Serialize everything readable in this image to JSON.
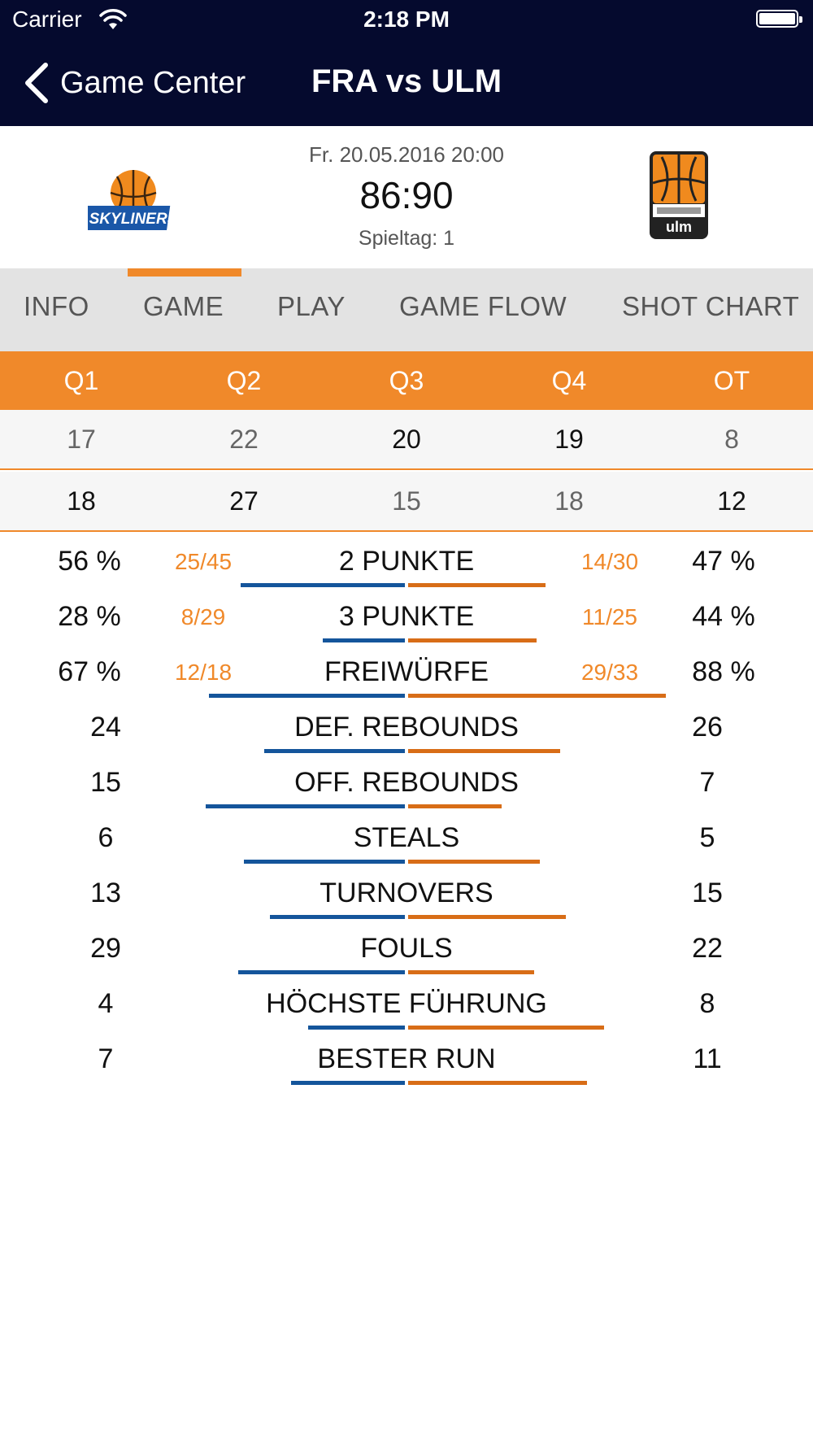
{
  "status_bar": {
    "carrier": "Carrier",
    "time": "2:18 PM"
  },
  "nav": {
    "back_label": "Game Center",
    "title": "FRA vs ULM"
  },
  "match": {
    "date": "Fr. 20.05.2016 20:00",
    "score": "86:90",
    "matchday": "Spieltag: 1",
    "home_logo_text": "SKYLINERS",
    "away_logo_text": "ulm"
  },
  "tabs": [
    {
      "label": "INFO"
    },
    {
      "label": "GAME",
      "active": true
    },
    {
      "label": "PLAY"
    },
    {
      "label": "GAME FLOW"
    },
    {
      "label": "SHOT CHART"
    }
  ],
  "quarters": {
    "headers": [
      "Q1",
      "Q2",
      "Q3",
      "Q4",
      "OT"
    ],
    "home": [
      "17",
      "22",
      "20",
      "19",
      "8"
    ],
    "away": [
      "18",
      "27",
      "15",
      "18",
      "12"
    ]
  },
  "stats": [
    {
      "label": "2 PUNKTE",
      "home_pct": "56 %",
      "home_frac": "25/45",
      "away_frac": "14/30",
      "away_pct": "47 %",
      "home_bar": 0.56,
      "away_bar": 0.47
    },
    {
      "label": "3 PUNKTE",
      "home_pct": "28 %",
      "home_frac": "8/29",
      "away_frac": "11/25",
      "away_pct": "44 %",
      "home_bar": 0.28,
      "away_bar": 0.44
    },
    {
      "label": "FREIWÜRFE",
      "home_pct": "67 %",
      "home_frac": "12/18",
      "away_frac": "29/33",
      "away_pct": "88 %",
      "home_bar": 0.67,
      "away_bar": 0.88
    },
    {
      "label": "DEF. REBOUNDS",
      "home_value": "24",
      "away_value": "26",
      "home_bar": 0.48,
      "away_bar": 0.52
    },
    {
      "label": "OFF. REBOUNDS",
      "home_value": "15",
      "away_value": "7",
      "home_bar": 0.68,
      "away_bar": 0.32
    },
    {
      "label": "STEALS",
      "home_value": "6",
      "away_value": "5",
      "home_bar": 0.55,
      "away_bar": 0.45
    },
    {
      "label": "TURNOVERS",
      "home_value": "13",
      "away_value": "15",
      "home_bar": 0.46,
      "away_bar": 0.54
    },
    {
      "label": "FOULS",
      "home_value": "29",
      "away_value": "22",
      "home_bar": 0.57,
      "away_bar": 0.43
    },
    {
      "label": "HÖCHSTE FÜHRUNG",
      "home_value": "4",
      "away_value": "8",
      "home_bar": 0.33,
      "away_bar": 0.67
    },
    {
      "label": "BESTER RUN",
      "home_value": "7",
      "away_value": "11",
      "home_bar": 0.39,
      "away_bar": 0.61
    }
  ],
  "colors": {
    "nav_bg": "#050a2e",
    "accent_orange": "#f0892a",
    "home_bar": "#14559b",
    "away_bar": "#d86d17",
    "tab_bg": "#e3e3e3"
  },
  "icons": {
    "back": "chevron-left-icon",
    "wifi": "wifi-icon",
    "battery": "battery-icon"
  }
}
